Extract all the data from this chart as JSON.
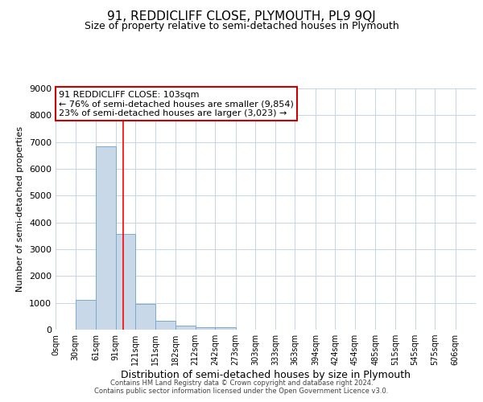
{
  "title": "91, REDDICLIFF CLOSE, PLYMOUTH, PL9 9QJ",
  "subtitle": "Size of property relative to semi-detached houses in Plymouth",
  "xlabel": "Distribution of semi-detached houses by size in Plymouth",
  "ylabel": "Number of semi-detached properties",
  "bar_left_edges": [
    0,
    30,
    61,
    91,
    121,
    151,
    182,
    212,
    242,
    273,
    303,
    333,
    363,
    394,
    424,
    454,
    485,
    515,
    545,
    575
  ],
  "bar_widths": [
    30,
    31,
    30,
    30,
    30,
    31,
    30,
    30,
    31,
    30,
    30,
    30,
    31,
    30,
    30,
    31,
    30,
    30,
    30,
    31
  ],
  "bar_heights": [
    0,
    1120,
    6850,
    3560,
    970,
    340,
    150,
    95,
    80,
    0,
    0,
    0,
    0,
    0,
    0,
    0,
    0,
    0,
    0,
    0
  ],
  "bar_color": "#c8d8e8",
  "bar_edgecolor": "#7aaacc",
  "red_line_x": 103,
  "annotation_title": "91 REDDICLIFF CLOSE: 103sqm",
  "annotation_line1": "← 76% of semi-detached houses are smaller (9,854)",
  "annotation_line2": "23% of semi-detached houses are larger (3,023) →",
  "annotation_box_facecolor": "#ffffff",
  "annotation_box_edgecolor": "#cc0000",
  "ylim": [
    0,
    9000
  ],
  "xlim": [
    0,
    637
  ],
  "xtick_positions": [
    0,
    30,
    61,
    91,
    121,
    151,
    182,
    212,
    242,
    273,
    303,
    333,
    363,
    394,
    424,
    454,
    485,
    515,
    545,
    575,
    606
  ],
  "xtick_labels": [
    "0sqm",
    "30sqm",
    "61sqm",
    "91sqm",
    "121sqm",
    "151sqm",
    "182sqm",
    "212sqm",
    "242sqm",
    "273sqm",
    "303sqm",
    "333sqm",
    "363sqm",
    "394sqm",
    "424sqm",
    "454sqm",
    "485sqm",
    "515sqm",
    "545sqm",
    "575sqm",
    "606sqm"
  ],
  "ytick_positions": [
    0,
    1000,
    2000,
    3000,
    4000,
    5000,
    6000,
    7000,
    8000,
    9000
  ],
  "grid_color": "#c8d4e4",
  "footer_line1": "Contains HM Land Registry data © Crown copyright and database right 2024.",
  "footer_line2": "Contains public sector information licensed under the Open Government Licence v3.0.",
  "background_color": "#ffffff",
  "title_fontsize": 11,
  "subtitle_fontsize": 9,
  "xlabel_fontsize": 9,
  "ylabel_fontsize": 8,
  "tick_fontsize": 7,
  "annot_fontsize": 8,
  "footer_fontsize": 6
}
